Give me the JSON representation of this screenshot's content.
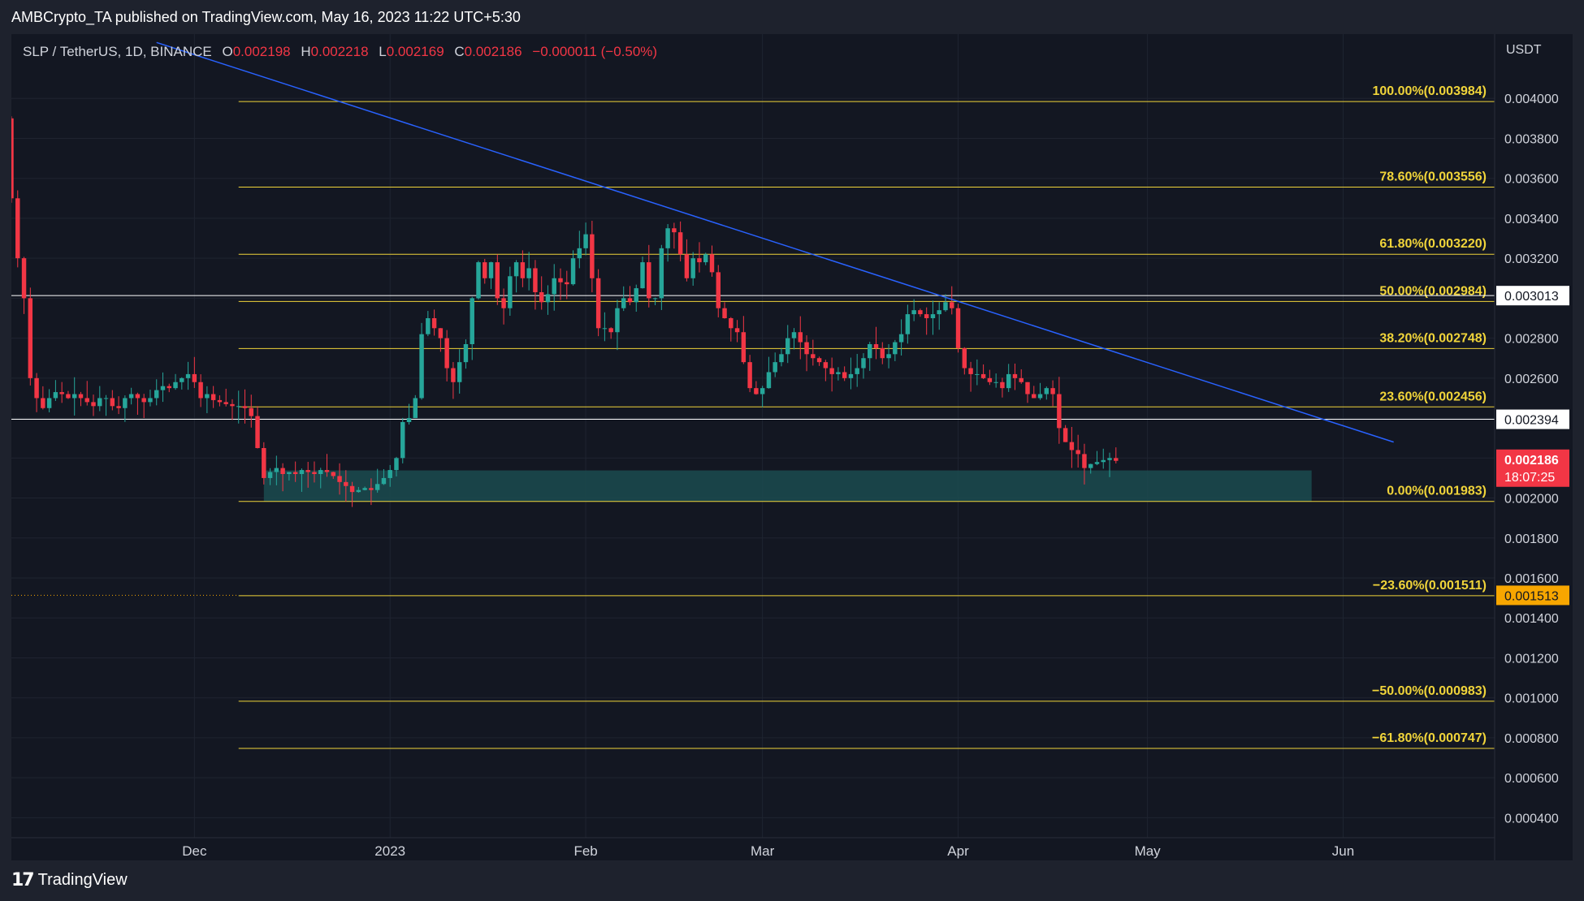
{
  "header": {
    "publisher": "AMBCrypto_TA published on TradingView.com, May 16, 2023 11:22 UTC+5:30"
  },
  "legend": {
    "symbol": "SLP / TetherUS, 1D, BINANCE",
    "open_key": "O",
    "open": "0.002198",
    "high_key": "H",
    "high": "0.002218",
    "low_key": "L",
    "low": "0.002169",
    "close_key": "C",
    "close": "0.002186",
    "change": "−0.000011 (−0.50%)"
  },
  "footer": {
    "brand": "TradingView"
  },
  "chart_data": {
    "type": "candlestick",
    "currency_label": "USDT",
    "ylim": [
      0.0003,
      0.0042
    ],
    "y_ticks": [
      0.0004,
      0.0006,
      0.0008,
      0.001,
      0.0012,
      0.0014,
      0.0016,
      0.0018,
      0.002,
      0.0022,
      0.0024,
      0.0026,
      0.0028,
      0.003,
      0.0032,
      0.0034,
      0.0036,
      0.0038,
      0.004
    ],
    "x_start": "2022-11-02",
    "x_end": "2023-06-25",
    "x_ticks": [
      {
        "date": "2022-12-01",
        "label": "Dec"
      },
      {
        "date": "2023-01-01",
        "label": "2023"
      },
      {
        "date": "2023-02-01",
        "label": "Feb"
      },
      {
        "date": "2023-03-01",
        "label": "Mar"
      },
      {
        "date": "2023-04-01",
        "label": "Apr"
      },
      {
        "date": "2023-05-01",
        "label": "May"
      },
      {
        "date": "2023-06-01",
        "label": "Jun"
      }
    ],
    "candles_start": "2022-11-01",
    "close_path": [
      0.0039,
      0.0035,
      0.0032,
      0.003,
      0.0026,
      0.0025,
      0.00245,
      0.0025,
      0.00253,
      0.00252,
      0.0025,
      0.00252,
      0.0025,
      0.00248,
      0.00246,
      0.0025,
      0.0025,
      0.00246,
      0.00245,
      0.0025,
      0.00252,
      0.0025,
      0.00248,
      0.0025,
      0.00254,
      0.00256,
      0.00255,
      0.00258,
      0.0026,
      0.00262,
      0.00258,
      0.0025,
      0.00252,
      0.00249,
      0.00248,
      0.00247,
      0.00246,
      0.00246,
      0.00245,
      0.00241,
      0.00225,
      0.0021,
      0.00213,
      0.00215,
      0.00212,
      0.00213,
      0.00212,
      0.00214,
      0.00213,
      0.00212,
      0.00214,
      0.00213,
      0.00211,
      0.00208,
      0.00206,
      0.00203,
      0.00204,
      0.00205,
      0.00204,
      0.00207,
      0.0021,
      0.00214,
      0.0022,
      0.00238,
      0.0024,
      0.0025,
      0.00282,
      0.0029,
      0.00285,
      0.0028,
      0.00265,
      0.00258,
      0.00268,
      0.00277,
      0.003,
      0.00318,
      0.0031,
      0.00318,
      0.003,
      0.00295,
      0.00311,
      0.00318,
      0.0031,
      0.00315,
      0.00303,
      0.00298,
      0.00302,
      0.0031,
      0.00308,
      0.00307,
      0.0032,
      0.00325,
      0.00332,
      0.0031,
      0.00285,
      0.00285,
      0.00283,
      0.00295,
      0.003,
      0.00298,
      0.00305,
      0.00318,
      0.003,
      0.003,
      0.00325,
      0.00335,
      0.00333,
      0.00322,
      0.0031,
      0.0032,
      0.00318,
      0.00322,
      0.00313,
      0.00295,
      0.0029,
      0.00285,
      0.00283,
      0.00268,
      0.00255,
      0.00252,
      0.00255,
      0.00263,
      0.00268,
      0.00272,
      0.0028,
      0.00283,
      0.00278,
      0.00272,
      0.0027,
      0.00268,
      0.00265,
      0.00262,
      0.00263,
      0.0026,
      0.00262,
      0.00265,
      0.0027,
      0.00277,
      0.00275,
      0.0027,
      0.00272,
      0.00278,
      0.00282,
      0.00292,
      0.00294,
      0.00292,
      0.0029,
      0.00292,
      0.00294,
      0.00298,
      0.00295,
      0.00275,
      0.00265,
      0.00262,
      0.00262,
      0.0026,
      0.00258,
      0.00258,
      0.00255,
      0.00262,
      0.0026,
      0.00258,
      0.00252,
      0.0025,
      0.00252,
      0.00255,
      0.00252,
      0.00235,
      0.00228,
      0.00224,
      0.00222,
      0.00215,
      0.00217,
      0.00218,
      0.00219,
      0.0022,
      0.002186
    ],
    "fib_levels": [
      {
        "label": "100.00%(0.003984)",
        "value": 0.003984
      },
      {
        "label": "78.60%(0.003556)",
        "value": 0.003556
      },
      {
        "label": "61.80%(0.003220)",
        "value": 0.00322
      },
      {
        "label": "50.00%(0.002984)",
        "value": 0.002984
      },
      {
        "label": "38.20%(0.002748)",
        "value": 0.002748
      },
      {
        "label": "23.60%(0.002456)",
        "value": 0.002456
      },
      {
        "label": "0.00%(0.001983)",
        "value": 0.001983
      },
      {
        "label": "−23.60%(0.001511)",
        "value": 0.001511
      },
      {
        "label": "−50.00%(0.000983)",
        "value": 0.000983
      },
      {
        "label": "−61.80%(0.000747)",
        "value": 0.000747
      }
    ],
    "fib_start": "2022-12-08",
    "fib_end": "2023-06-25",
    "horizontal_lines": [
      {
        "value": 0.003013,
        "label": "0.003013",
        "color": "#ffffff"
      },
      {
        "value": 0.002394,
        "label": "0.002394",
        "color": "#ffffff"
      }
    ],
    "dotted_line": {
      "value": 0.001513,
      "label": "0.001513",
      "color": "#f7a600",
      "end": "2022-12-08"
    },
    "price_label": {
      "value": 0.002186,
      "label": "0.002186",
      "countdown": "18:07:25",
      "color": "#f23645"
    },
    "trendline": {
      "start_date": "2022-11-25",
      "start_value": 0.00428,
      "end_date": "2023-06-09",
      "end_value": 0.00228,
      "color": "#2962ff"
    },
    "support_zone": {
      "start": "2022-12-12",
      "end": "2023-05-27",
      "low": 0.001983,
      "high": 0.002138,
      "color": "#1b4b4f"
    },
    "colors": {
      "up": "#26a69a",
      "down": "#f23645",
      "fib": "#f0d43a",
      "grid": "#1f2430",
      "text": "#d1d4dc",
      "background": "#131722"
    }
  }
}
